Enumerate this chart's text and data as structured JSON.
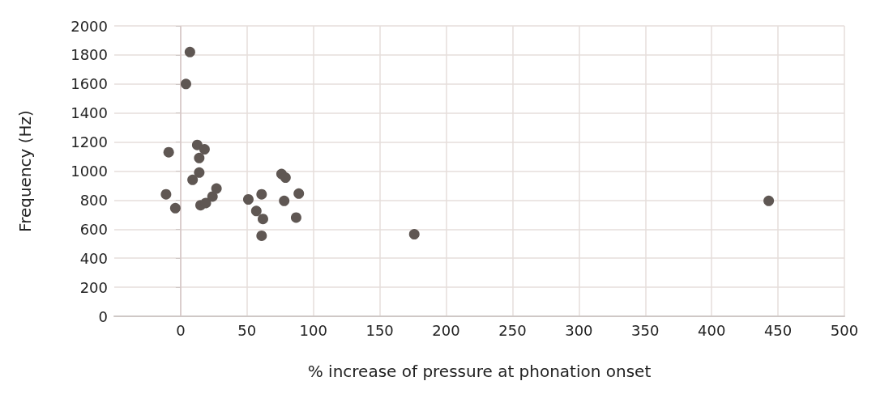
{
  "chart_data": {
    "type": "scatter",
    "xlabel": "% increase of pressure at phonation onset",
    "ylabel": "Frequency (Hz)",
    "x": [
      7,
      4,
      -9,
      -4,
      -11,
      12.5,
      18,
      14,
      14,
      9,
      15,
      19,
      24,
      27,
      51,
      57,
      61,
      62,
      61,
      76,
      79,
      78,
      89,
      87,
      176,
      443
    ],
    "series": [
      {
        "color": "#5f5753",
        "values": [
          1820,
          1600,
          1130,
          745,
          840,
          1180,
          1150,
          1090,
          990,
          940,
          765,
          780,
          825,
          880,
          805,
          725,
          840,
          670,
          555,
          980,
          955,
          795,
          845,
          680,
          565,
          795
        ]
      }
    ],
    "xlim": [
      -50,
      500
    ],
    "xticks": [
      0,
      50,
      100,
      150,
      200,
      250,
      300,
      350,
      400,
      450,
      500
    ],
    "ylim": [
      0,
      2000
    ],
    "yticks": [
      0,
      200,
      400,
      600,
      800,
      1000,
      1200,
      1400,
      1600,
      1800,
      2000
    ],
    "ref_lines": [
      {
        "axis": "x",
        "value": 0,
        "color": "#d6c6c6"
      }
    ],
    "grid": true,
    "marker": "circle"
  }
}
